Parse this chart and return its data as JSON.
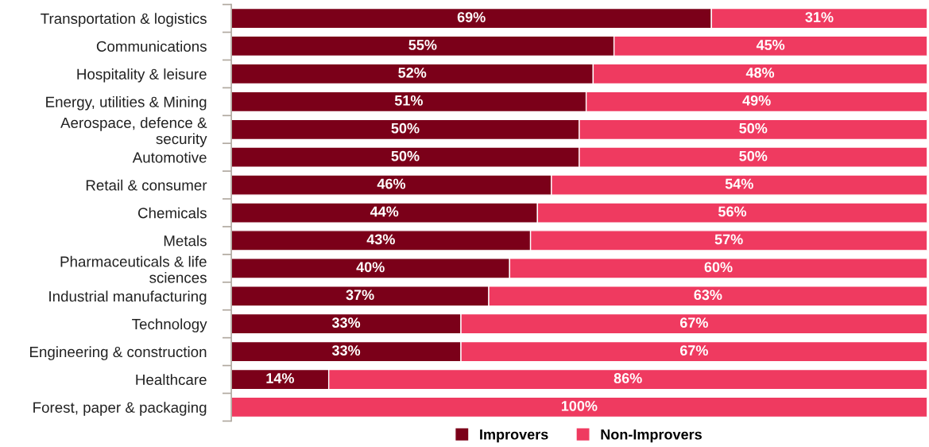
{
  "chart_data": {
    "type": "bar",
    "orientation": "horizontal",
    "stacked": true,
    "categories": [
      "Transportation & logistics",
      "Communications",
      "Hospitality & leisure",
      "Energy, utilities & Mining",
      "Aerospace, defence &\nsecurity",
      "Automotive",
      "Retail & consumer",
      "Chemicals",
      "Metals",
      "Pharmaceuticals & life\nsciences",
      "Industrial manufacturing",
      "Technology",
      "Engineering & construction",
      "Healthcare",
      "Forest, paper & packaging"
    ],
    "series": [
      {
        "name": "Improvers",
        "color": "#7b0019",
        "values": [
          69,
          55,
          52,
          51,
          50,
          50,
          46,
          44,
          43,
          40,
          37,
          33,
          33,
          14,
          0
        ],
        "value_labels": [
          "69%",
          "55%",
          "52%",
          "51%",
          "50%",
          "50%",
          "46%",
          "44%",
          "43%",
          "40%",
          "37%",
          "33%",
          "33%",
          "14%",
          null
        ]
      },
      {
        "name": "Non-Improvers",
        "color": "#ef3a60",
        "values": [
          31,
          45,
          48,
          49,
          50,
          50,
          54,
          56,
          57,
          60,
          63,
          67,
          67,
          86,
          100
        ],
        "value_labels": [
          "31%",
          "45%",
          "48%",
          "49%",
          "50%",
          "50%",
          "54%",
          "56%",
          "57%",
          "60%",
          "63%",
          "67%",
          "67%",
          "86%",
          "100%"
        ]
      }
    ],
    "xlim": [
      0,
      100
    ],
    "tick_labels": "y",
    "legend": "bottom",
    "grid": false
  }
}
